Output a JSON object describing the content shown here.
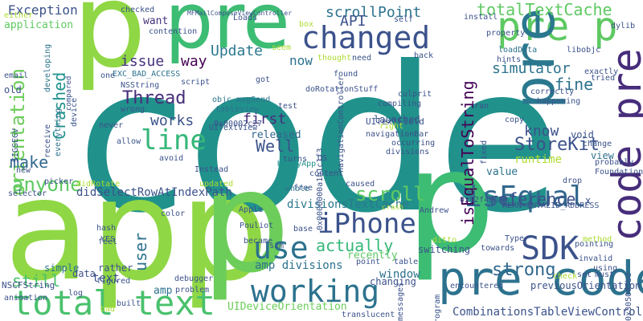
{
  "image_kind": "word cloud",
  "palette": [
    "#440154",
    "#472d7b",
    "#3b528b",
    "#2c728e",
    "#21918c",
    "#28ae80",
    "#5ec962",
    "#addc30",
    "#fde725"
  ],
  "words": [
    {
      "text": "code",
      "color": "#21918c"
    },
    {
      "text": "app",
      "color": "#8fd744"
    },
    {
      "text": "p",
      "color": "#8fd744"
    },
    {
      "text": "p",
      "color": "#6ccd5a"
    },
    {
      "text": "p",
      "color": "#3dbc74"
    },
    {
      "text": "pre",
      "color": "#3dbc74"
    },
    {
      "text": "changed",
      "color": "#3b528b"
    },
    {
      "text": "pre p",
      "color": "#5ec962"
    },
    {
      "text": "pre code",
      "color": "#2c728e"
    },
    {
      "text": "total text",
      "color": "#4ac16d"
    },
    {
      "text": "code pre",
      "color": "#472d7b"
    },
    {
      "text": "pre",
      "color": "#2a788e"
    },
    {
      "text": "totalTextCache",
      "color": "#5ec962"
    },
    {
      "text": "working",
      "color": "#2c728e"
    },
    {
      "text": "iPhone",
      "color": "#3b528b"
    },
    {
      "text": "isEqual",
      "color": "#31688e"
    },
    {
      "text": "SDK",
      "color": "#3b528b"
    },
    {
      "text": "use",
      "color": "#2c728e"
    },
    {
      "text": "line",
      "color": "#35b779"
    },
    {
      "text": "Thread",
      "color": "#472d7b"
    },
    {
      "text": "orientation",
      "color": "#6ccd5a"
    },
    {
      "text": "anyone",
      "color": "#5ec962"
    },
    {
      "text": "isEqualToString",
      "color": "#440154"
    },
    {
      "text": "scroll",
      "color": "#5ec962"
    },
    {
      "text": "reference",
      "color": "#3b528b"
    },
    {
      "text": "Update",
      "color": "#2a788e"
    },
    {
      "text": "scrollPoint",
      "color": "#2c728e"
    },
    {
      "text": "issue",
      "color": "#46327e"
    },
    {
      "text": "actually",
      "color": "#35b779"
    },
    {
      "text": "strong",
      "color": "#31688e"
    },
    {
      "text": "simulator",
      "color": "#2c728e"
    },
    {
      "text": "fine",
      "color": "#2c728e"
    },
    {
      "text": "StoreKit",
      "color": "#3b528b"
    },
    {
      "text": "know",
      "color": "#3b528b"
    },
    {
      "text": "works",
      "color": "#3b528b"
    },
    {
      "text": "first",
      "color": "#472d7b"
    },
    {
      "text": "Well",
      "color": "#3b528b"
    },
    {
      "text": "released",
      "color": "#31688e"
    },
    {
      "text": "way",
      "color": "#440154"
    },
    {
      "text": "Crashed",
      "color": "#21918c"
    },
    {
      "text": "make",
      "color": "#31688e"
    },
    {
      "text": "user",
      "color": "#2c728e"
    },
    {
      "text": "still",
      "color": "#4ac16d"
    },
    {
      "text": "now",
      "color": "#2c728e"
    },
    {
      "text": "API",
      "color": "#3b528b"
    },
    {
      "text": "Exception",
      "color": "#3b528b"
    },
    {
      "text": "application",
      "color": "#5ec962"
    },
    {
      "text": "want",
      "color": "#46327e"
    },
    {
      "text": "divisionsTextCache",
      "color": "#2a788e"
    },
    {
      "text": "amp divisions",
      "color": "#2c728e"
    },
    {
      "text": "didSelectRowAtIndexPath",
      "color": "#3b528b"
    },
    {
      "text": "CombinationsTableViewController",
      "color": "#3b528b"
    },
    {
      "text": "previousOrientation",
      "color": "#3b528b"
    },
    {
      "text": "UIDeviceOrientation",
      "color": "#6ccd5a"
    },
    {
      "text": "KERN_INVALID_ADDRESS",
      "color": "#3b528b"
    },
    {
      "text": "EXC_BAD_ACCESS",
      "color": "#2c728e"
    },
    {
      "text": "doRotationStuff",
      "color": "#3b528b"
    },
    {
      "text": "objc_msgSend",
      "color": "#2c728e"
    },
    {
      "text": "navigationBar",
      "color": "#3b528b"
    },
    {
      "text": "tableview",
      "color": "#2c728e"
    },
    {
      "text": "UITextField",
      "color": "#3b528b"
    },
    {
      "text": "UITextView",
      "color": "#3b528b"
    },
    {
      "text": "0x00002c27",
      "color": "#3b528b"
    },
    {
      "text": "0x0000000a1b1c1f3",
      "color": "#3b528b"
    },
    {
      "text": "0x92f4b688",
      "color": "#3b528b"
    },
    {
      "text": "0x305005bd",
      "color": "#3b528b"
    },
    {
      "text": "NSCFString",
      "color": "#3b528b"
    },
    {
      "text": "NSString",
      "color": "#3b528b"
    },
    {
      "text": "HappyApp",
      "color": "#21918c"
    },
    {
      "text": "launched",
      "color": "#3b528b"
    },
    {
      "text": "compiling",
      "color": "#3b528b"
    },
    {
      "text": "divisions",
      "color": "#3b528b"
    },
    {
      "text": "culprit",
      "color": "#3b528b"
    },
    {
      "text": "runtime",
      "color": "#addc30"
    },
    {
      "text": "value",
      "color": "#2c728e"
    },
    {
      "text": "window",
      "color": "#2c728e"
    },
    {
      "text": "point",
      "color": "#3b528b"
    },
    {
      "text": "table",
      "color": "#3b528b"
    },
    {
      "text": "text",
      "color": "#3b528b"
    },
    {
      "text": "amp",
      "color": "#2c728e"
    },
    {
      "text": "data",
      "color": "#3b528b"
    },
    {
      "text": "simple",
      "color": "#2c728e"
    },
    {
      "text": "rather",
      "color": "#3b528b"
    },
    {
      "text": "problem",
      "color": "#3b528b"
    },
    {
      "text": "encountered",
      "color": "#3b528b"
    },
    {
      "text": "changing",
      "color": "#3b528b"
    },
    {
      "text": "switching",
      "color": "#3b528b"
    },
    {
      "text": "recently",
      "color": "#5ec962"
    },
    {
      "text": "Pouliot",
      "color": "#3b528b"
    },
    {
      "text": "Apple",
      "color": "#3b528b"
    },
    {
      "text": "Andrew",
      "color": "#3b528b"
    },
    {
      "text": "became",
      "color": "#3b528b"
    },
    {
      "text": "free",
      "color": "#3b528b"
    },
    {
      "text": "whole",
      "color": "#2c728e"
    },
    {
      "text": "caused",
      "color": "#3b528b"
    },
    {
      "text": "crash",
      "color": "#addc30"
    },
    {
      "text": "ditto",
      "color": "#addc30"
    },
    {
      "text": "hash",
      "color": "#3b528b"
    },
    {
      "text": "feel",
      "color": "#3b528b"
    },
    {
      "text": "YES",
      "color": "#3b528b"
    },
    {
      "text": "color",
      "color": "#3b528b"
    },
    {
      "text": "updated",
      "color": "#addc30"
    },
    {
      "text": "picker",
      "color": "#3b528b"
    },
    {
      "text": "selector",
      "color": "#3b528b"
    },
    {
      "text": "everything",
      "color": "#2c728e"
    },
    {
      "text": "developing",
      "color": "#2c728e"
    },
    {
      "text": "never",
      "color": "#3b528b"
    },
    {
      "text": "wrong",
      "color": "#3b528b"
    },
    {
      "text": "allow",
      "color": "#3b528b"
    },
    {
      "text": "figured",
      "color": "#3b528b"
    },
    {
      "text": "script",
      "color": "#3b528b"
    },
    {
      "text": "found",
      "color": "#3b528b"
    },
    {
      "text": "thought",
      "color": "#addc30"
    },
    {
      "text": "need",
      "color": "#3b528b"
    },
    {
      "text": "seem",
      "color": "#addc30"
    },
    {
      "text": "got",
      "color": "#3b528b"
    },
    {
      "text": "test",
      "color": "#3b528b"
    },
    {
      "text": "self",
      "color": "#3b528b"
    },
    {
      "text": "install",
      "color": "#3b528b"
    },
    {
      "text": "property",
      "color": "#3b528b"
    },
    {
      "text": "loadData",
      "color": "#2c728e"
    },
    {
      "text": "libobjc",
      "color": "#3b528b"
    },
    {
      "text": "dylib",
      "color": "#3b528b"
    },
    {
      "text": "hints",
      "color": "#3b528b"
    },
    {
      "text": "exactly",
      "color": "#3b528b"
    },
    {
      "text": "tried",
      "color": "#3b528b"
    },
    {
      "text": "correctly",
      "color": "#3b528b"
    },
    {
      "text": "happening",
      "color": "#3b528b"
    },
    {
      "text": "ran",
      "color": "#3b528b"
    },
    {
      "text": "copy",
      "color": "#3b528b"
    },
    {
      "text": "void",
      "color": "#3b528b"
    },
    {
      "text": "change",
      "color": "#3b528b"
    },
    {
      "text": "view",
      "color": "#2c728e"
    },
    {
      "text": "probably",
      "color": "#3b528b"
    },
    {
      "text": "Foundation",
      "color": "#3b528b"
    },
    {
      "text": "drop",
      "color": "#3b528b"
    },
    {
      "text": "Type",
      "color": "#3b528b"
    },
    {
      "text": "towards",
      "color": "#3b528b"
    },
    {
      "text": "pointing",
      "color": "#3b528b"
    },
    {
      "text": "method",
      "color": "#addc30"
    },
    {
      "text": "invalid",
      "color": "#3b528b"
    },
    {
      "text": "check",
      "color": "#addc30"
    },
    {
      "text": "set",
      "color": "#3b528b"
    },
    {
      "text": "using",
      "color": "#3b528b"
    },
    {
      "text": "must",
      "color": "#3b528b"
    },
    {
      "text": "fixed",
      "color": "#3b528b"
    },
    {
      "text": "Loads",
      "color": "#3b528b"
    },
    {
      "text": "checked",
      "color": "#3b528b"
    },
    {
      "text": "contention",
      "color": "#3b528b"
    },
    {
      "text": "box",
      "color": "#addc30"
    },
    {
      "text": "back",
      "color": "#3b528b"
    },
    {
      "text": "one",
      "color": "#3b528b"
    },
    {
      "text": "old",
      "color": "#3b528b"
    },
    {
      "text": "email",
      "color": "#3b528b"
    },
    {
      "text": "either",
      "color": "#addc30"
    },
    {
      "text": "SIGSEGV",
      "color": "#3b528b"
    },
    {
      "text": "receive",
      "color": "#3b528b"
    },
    {
      "text": "device",
      "color": "#3b528b"
    },
    {
      "text": "compared",
      "color": "#3b528b"
    },
    {
      "text": "new",
      "color": "#3b528b"
    },
    {
      "text": "didRotate",
      "color": "#addc30"
    },
    {
      "text": "avoid",
      "color": "#3b528b"
    },
    {
      "text": "Instead",
      "color": "#3b528b"
    },
    {
      "text": "turns",
      "color": "#3b528b"
    },
    {
      "text": "content",
      "color": "#3b528b"
    },
    {
      "text": "right",
      "color": "#addc30"
    },
    {
      "text": "occurring",
      "color": "#3b528b"
    },
    {
      "text": "sim",
      "color": "#3b528b"
    },
    {
      "text": "base",
      "color": "#3b528b"
    },
    {
      "text": "debugger",
      "color": "#3b528b"
    },
    {
      "text": "animation",
      "color": "#3b528b"
    },
    {
      "text": "log",
      "color": "#3b528b"
    },
    {
      "text": "built",
      "color": "#3b528b"
    },
    {
      "text": "bad",
      "color": "#addc30"
    },
    {
      "text": "translucent",
      "color": "#3b528b"
    },
    {
      "text": "messages",
      "color": "#3b528b"
    },
    {
      "text": "program",
      "color": "#3b528b"
    },
    {
      "text": "OS",
      "color": "#3b528b"
    },
    {
      "text": "x",
      "color": "#3b528b"
    },
    {
      "text": "navigationController",
      "color": "#3b528b"
    },
    {
      "text": "MFMailComposeViewController",
      "color": "#3b528b"
    }
  ]
}
